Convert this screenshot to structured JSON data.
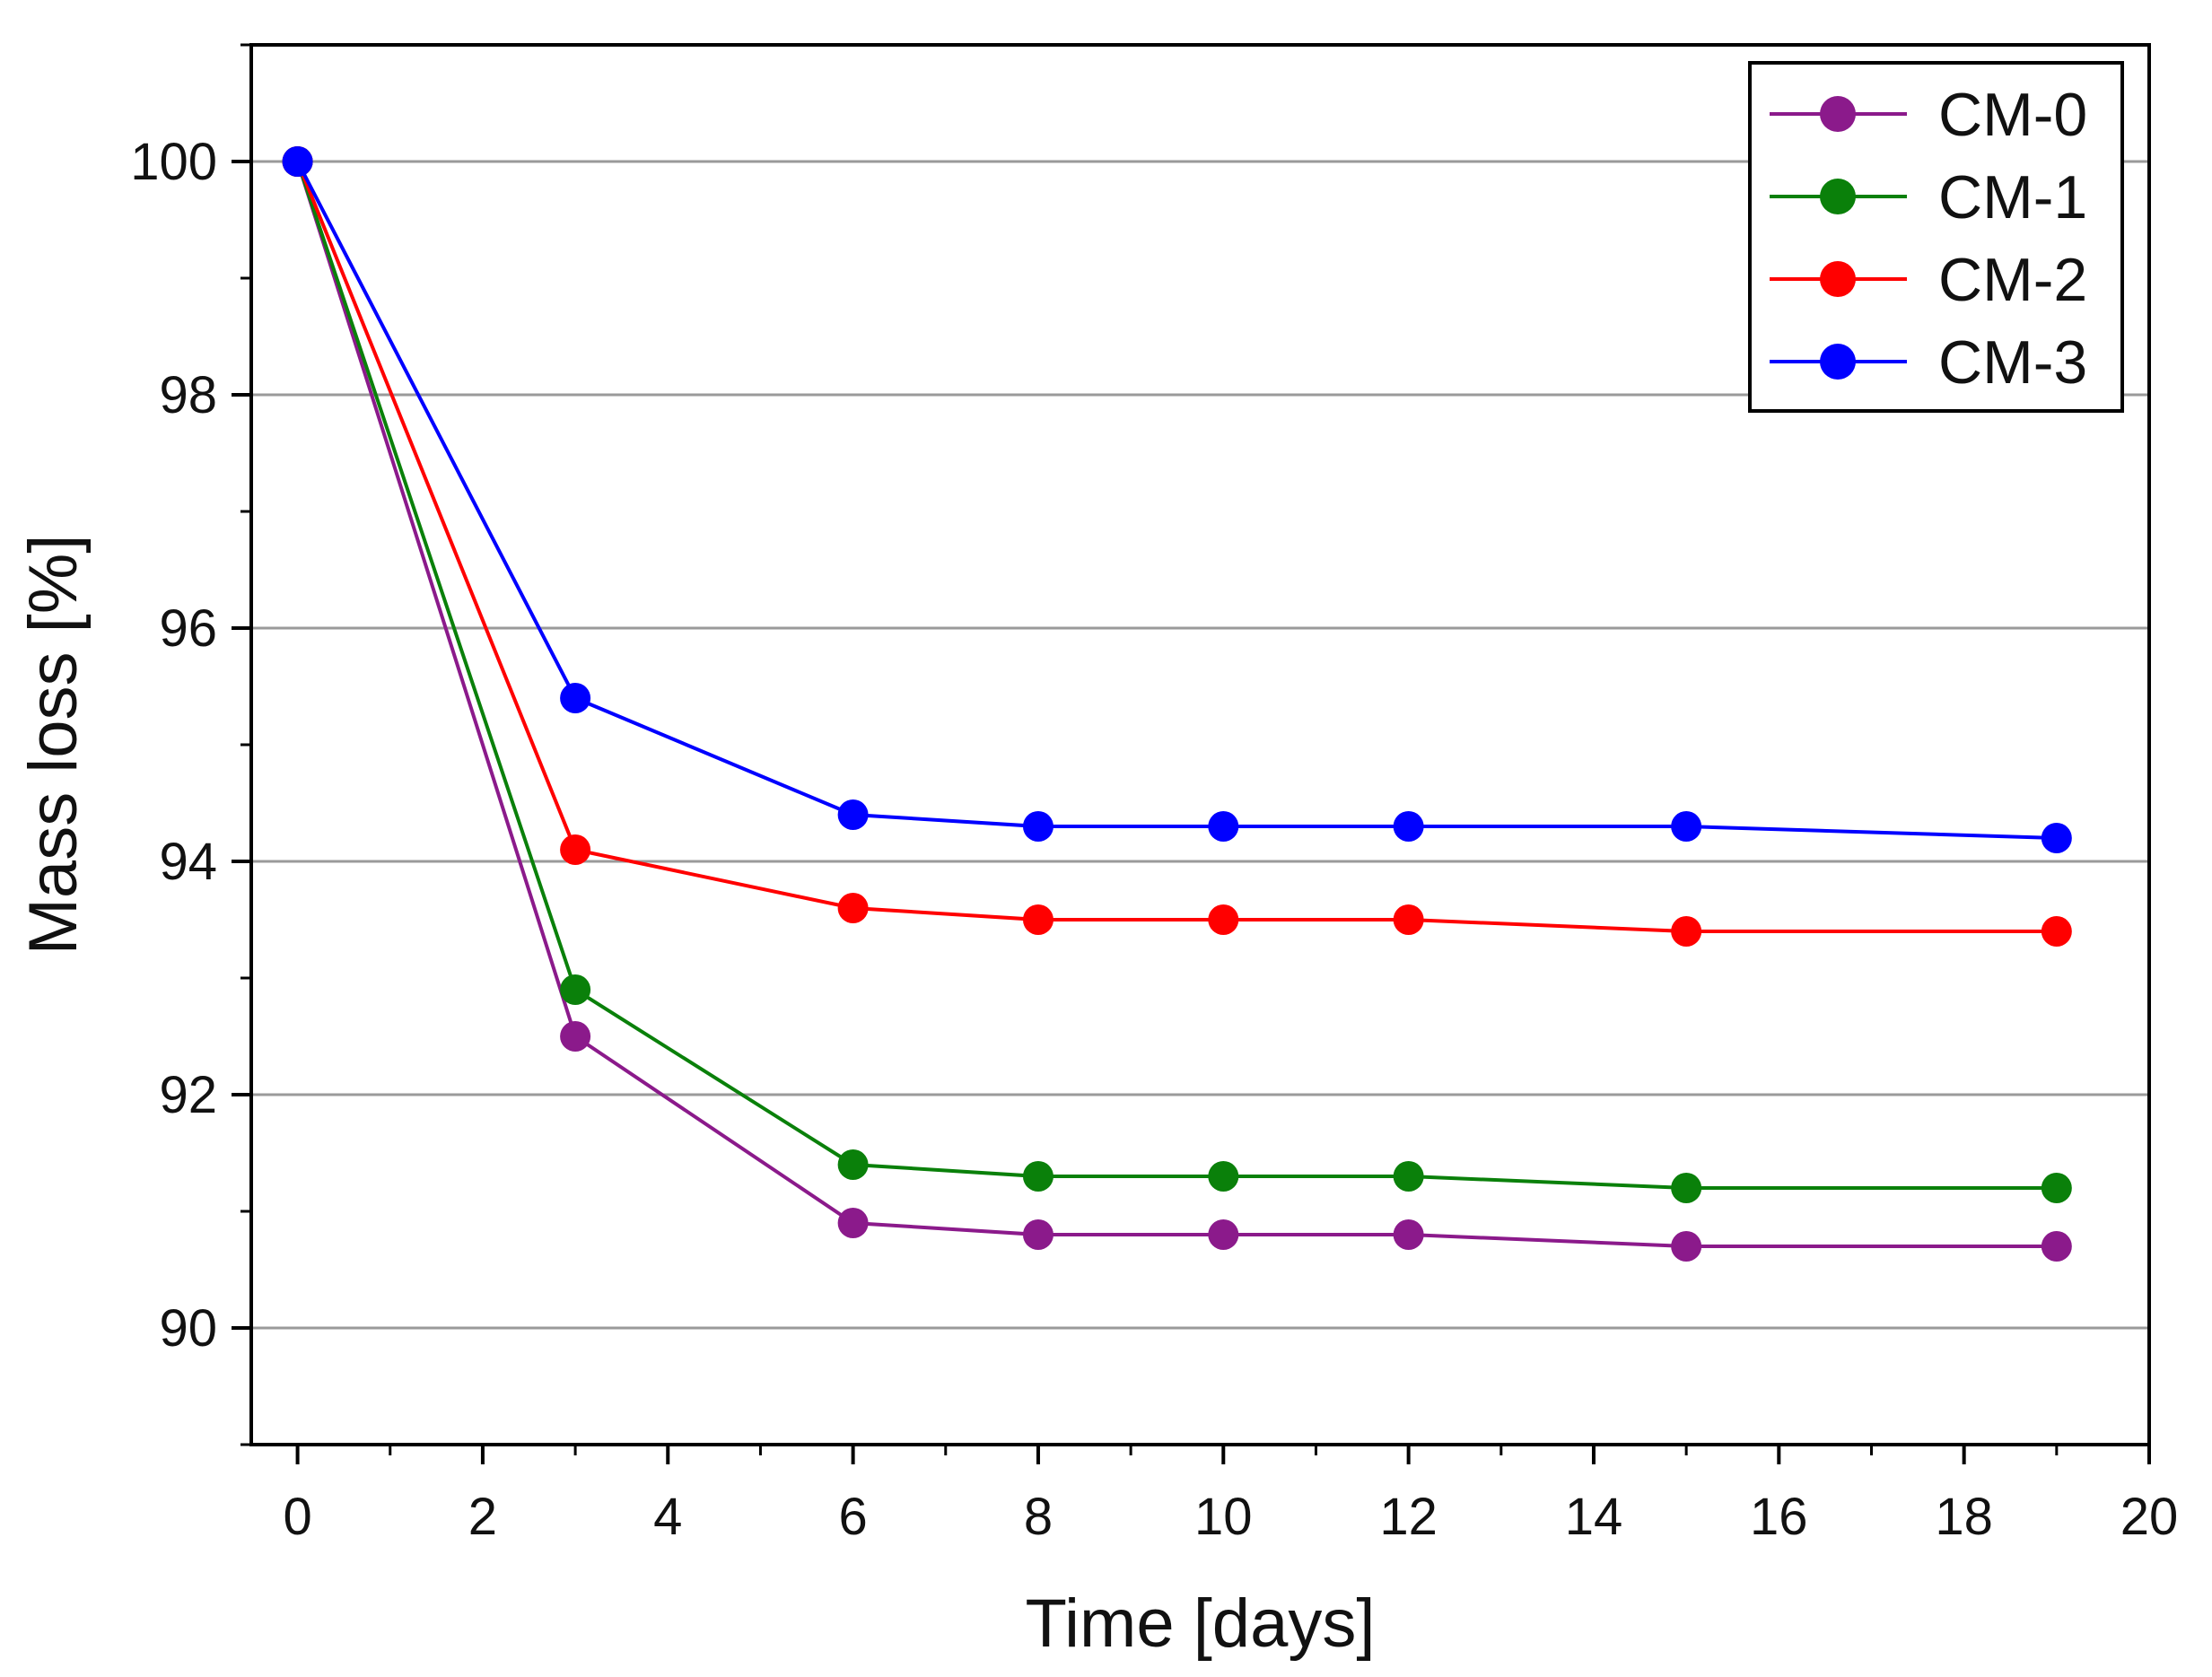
{
  "chart_data": {
    "type": "line",
    "title": "",
    "xlabel": "Time [days]",
    "ylabel": "Mass loss [%]",
    "xlim": [
      -0.5,
      20
    ],
    "ylim": [
      89,
      101
    ],
    "xticks": [
      0,
      2,
      4,
      6,
      8,
      10,
      12,
      14,
      16,
      18,
      20
    ],
    "xtick_labels": [
      "0",
      "2",
      "4",
      "6",
      "8",
      "10",
      "12",
      "14",
      "16",
      "18",
      "20"
    ],
    "yticks": [
      90,
      92,
      94,
      96,
      98,
      100
    ],
    "ytick_labels": [
      "90",
      "92",
      "94",
      "96",
      "98",
      "100"
    ],
    "grid": "horizontal major",
    "legend_position": "top-right",
    "x": [
      0,
      3,
      6,
      8,
      10,
      12,
      15,
      19
    ],
    "series": [
      {
        "name": "CM-0",
        "color": "#8b1a8b",
        "values": [
          100,
          92.5,
          90.9,
          90.8,
          90.8,
          90.8,
          90.7,
          90.7
        ]
      },
      {
        "name": "CM-1",
        "color": "#0a800a",
        "values": [
          100,
          92.9,
          91.4,
          91.3,
          91.3,
          91.3,
          91.2,
          91.2
        ]
      },
      {
        "name": "CM-2",
        "color": "#ff0000",
        "values": [
          100,
          94.1,
          93.6,
          93.5,
          93.5,
          93.5,
          93.4,
          93.4
        ]
      },
      {
        "name": "CM-3",
        "color": "#0000ff",
        "values": [
          100,
          95.4,
          94.4,
          94.3,
          94.3,
          94.3,
          94.3,
          94.2
        ]
      }
    ]
  }
}
